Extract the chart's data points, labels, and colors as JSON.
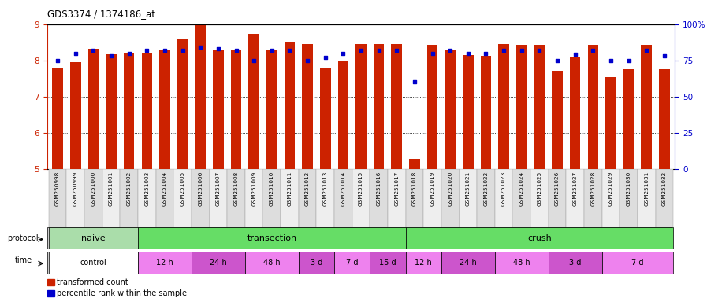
{
  "title": "GDS3374 / 1374186_at",
  "samples": [
    "GSM250998",
    "GSM250999",
    "GSM251000",
    "GSM251001",
    "GSM251002",
    "GSM251003",
    "GSM251004",
    "GSM251005",
    "GSM251006",
    "GSM251007",
    "GSM251008",
    "GSM251009",
    "GSM251010",
    "GSM251011",
    "GSM251012",
    "GSM251013",
    "GSM251014",
    "GSM251015",
    "GSM251016",
    "GSM251017",
    "GSM251018",
    "GSM251019",
    "GSM251020",
    "GSM251021",
    "GSM251022",
    "GSM251023",
    "GSM251024",
    "GSM251025",
    "GSM251026",
    "GSM251027",
    "GSM251028",
    "GSM251029",
    "GSM251030",
    "GSM251031",
    "GSM251032"
  ],
  "red_values": [
    7.8,
    7.95,
    8.32,
    8.18,
    8.2,
    8.22,
    8.3,
    8.58,
    8.97,
    8.28,
    8.3,
    8.74,
    8.3,
    8.52,
    8.45,
    7.78,
    8.0,
    8.45,
    8.45,
    8.45,
    5.28,
    8.42,
    8.3,
    8.15,
    8.12,
    8.45,
    8.42,
    8.42,
    7.72,
    8.1,
    8.42,
    7.55,
    7.76,
    8.42,
    7.76
  ],
  "blue_values": [
    75,
    80,
    82,
    78,
    80,
    82,
    82,
    82,
    84,
    83,
    82,
    75,
    82,
    82,
    75,
    77,
    80,
    82,
    82,
    82,
    60,
    80,
    82,
    80,
    80,
    82,
    82,
    82,
    75,
    79,
    82,
    75,
    75,
    82,
    78
  ],
  "ylim_left": [
    5,
    9
  ],
  "ylim_right": [
    0,
    100
  ],
  "yticks_left": [
    5,
    6,
    7,
    8,
    9
  ],
  "yticks_right": [
    0,
    25,
    50,
    75,
    100
  ],
  "protocol_groups": [
    {
      "label": "naive",
      "start": 0,
      "end": 4,
      "color": "#aaddaa"
    },
    {
      "label": "transection",
      "start": 5,
      "end": 19,
      "color": "#66dd66"
    },
    {
      "label": "crush",
      "start": 20,
      "end": 34,
      "color": "#66dd66"
    }
  ],
  "time_groups": [
    {
      "label": "control",
      "start": 0,
      "end": 4,
      "color": "#ffffff"
    },
    {
      "label": "12 h",
      "start": 5,
      "end": 7,
      "color": "#EE82EE"
    },
    {
      "label": "24 h",
      "start": 8,
      "end": 10,
      "color": "#cc55cc"
    },
    {
      "label": "48 h",
      "start": 11,
      "end": 13,
      "color": "#EE82EE"
    },
    {
      "label": "3 d",
      "start": 14,
      "end": 15,
      "color": "#cc55cc"
    },
    {
      "label": "7 d",
      "start": 16,
      "end": 17,
      "color": "#EE82EE"
    },
    {
      "label": "15 d",
      "start": 18,
      "end": 19,
      "color": "#cc55cc"
    },
    {
      "label": "12 h",
      "start": 20,
      "end": 21,
      "color": "#EE82EE"
    },
    {
      "label": "24 h",
      "start": 22,
      "end": 24,
      "color": "#cc55cc"
    },
    {
      "label": "48 h",
      "start": 25,
      "end": 27,
      "color": "#EE82EE"
    },
    {
      "label": "3 d",
      "start": 28,
      "end": 30,
      "color": "#cc55cc"
    },
    {
      "label": "7 d",
      "start": 31,
      "end": 34,
      "color": "#EE82EE"
    }
  ],
  "bar_color": "#CC2200",
  "dot_color": "#0000CC",
  "left_axis_color": "#CC2200",
  "right_axis_color": "#0000CC",
  "bg_color": "#ffffff",
  "tick_bg_color": "#dddddd"
}
